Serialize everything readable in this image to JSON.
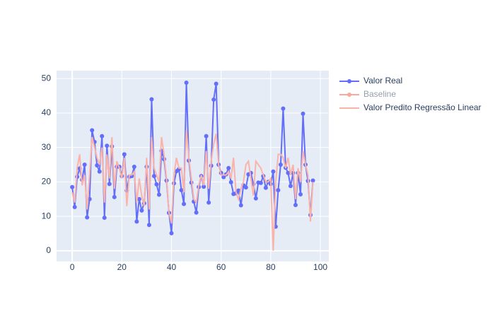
{
  "chart_data": {
    "type": "line",
    "x": [
      0,
      1,
      2,
      3,
      4,
      5,
      6,
      7,
      8,
      9,
      10,
      11,
      12,
      13,
      14,
      15,
      16,
      17,
      18,
      19,
      20,
      21,
      22,
      23,
      24,
      25,
      26,
      27,
      28,
      29,
      30,
      31,
      32,
      33,
      34,
      35,
      36,
      37,
      38,
      39,
      40,
      41,
      42,
      43,
      44,
      45,
      46,
      47,
      48,
      49,
      50,
      51,
      52,
      53,
      54,
      55,
      56,
      57,
      58,
      59,
      60,
      61,
      62,
      63,
      64,
      65,
      66,
      67,
      68,
      69,
      70,
      71,
      72,
      73,
      74,
      75,
      76,
      77,
      78,
      79,
      80,
      81,
      82,
      83,
      84,
      85,
      86,
      87,
      88,
      89,
      90,
      91,
      92,
      93,
      94,
      95,
      96,
      97
    ],
    "series": [
      {
        "name": "Valor Real",
        "color": "#636efa",
        "mode": "lines+markers",
        "values": [
          18.5,
          12.7,
          21.5,
          23.9,
          20.6,
          25,
          9.7,
          15,
          35,
          31.6,
          24.8,
          23,
          33.3,
          9.6,
          30.5,
          19.4,
          30.3,
          15.6,
          24.4,
          24.4,
          21.7,
          28,
          17.5,
          21.5,
          21.7,
          24.4,
          8.5,
          15,
          11.7,
          13.8,
          24.4,
          7.5,
          44,
          21.7,
          19.3,
          16.3,
          29,
          26.6,
          20.4,
          11,
          5.1,
          19.6,
          23.1,
          23.7,
          17.6,
          13.6,
          48.8,
          26.2,
          19.8,
          14.3,
          11.1,
          18.5,
          21.7,
          18.6,
          33.3,
          14,
          24.7,
          43.9,
          48.5,
          25,
          22.6,
          21.4,
          22.2,
          24,
          19.9,
          16.5,
          16.7,
          17.5,
          13.2,
          19,
          18.4,
          22.2,
          22.6,
          19.4,
          15.2,
          19.8,
          19.7,
          21.7,
          18.3,
          20,
          19.4,
          23,
          7,
          17.6,
          25,
          41.3,
          24.1,
          22.6,
          18.8,
          22.6,
          13.3,
          22.6,
          16.4,
          39.8,
          25,
          20.3,
          10.4,
          20.4
        ]
      },
      {
        "name": "Baseline",
        "color": "#ef553b",
        "mode": "lines+markers",
        "visible": "legendonly"
      },
      {
        "name": "Valor Predito Regressão Linear",
        "color": "#fbb2a8",
        "mode": "lines",
        "values": [
          17,
          14,
          24,
          28,
          19,
          22,
          12,
          22,
          33,
          30,
          27,
          25,
          30,
          14,
          28,
          21,
          33,
          18,
          26,
          24,
          21,
          27,
          13,
          22,
          22,
          23,
          14,
          21,
          16,
          13,
          27,
          12,
          33,
          24,
          22,
          20,
          33,
          28,
          21,
          11,
          8,
          22,
          27,
          24,
          24,
          17,
          35,
          27,
          21,
          15,
          14,
          19,
          22,
          19,
          29,
          18,
          26,
          31,
          34,
          25,
          22,
          22,
          22,
          23,
          21,
          27,
          17,
          15,
          18,
          20,
          25,
          26,
          21,
          16,
          26,
          25,
          24,
          22,
          20,
          20,
          21,
          0,
          20,
          28,
          28,
          27,
          24,
          27,
          22,
          25,
          15,
          24,
          20,
          29,
          25,
          22,
          8.5,
          20
        ]
      }
    ],
    "xlim": [
      -6.3,
      103.4
    ],
    "xticks": [
      0,
      20,
      40,
      60,
      80,
      100
    ],
    "ylim": [
      -3.1,
      52.3
    ],
    "yticks": [
      0,
      10,
      20,
      30,
      40,
      50
    ],
    "grid": true,
    "legend": "right"
  }
}
